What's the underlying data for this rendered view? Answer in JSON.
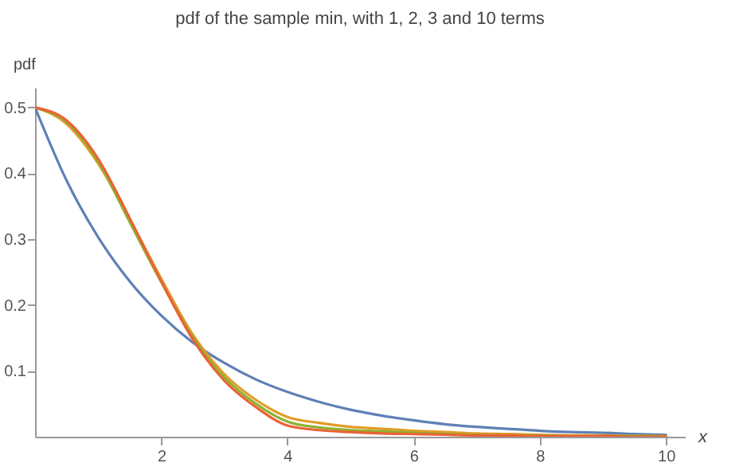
{
  "chart_data": {
    "type": "line",
    "title": "pdf of the sample min, with 1, 2, 3  and 10 terms",
    "xlabel": "x",
    "ylabel": "pdf",
    "x": [
      0,
      0.5,
      1,
      1.5,
      2,
      2.5,
      3,
      3.5,
      4,
      4.5,
      5,
      5.5,
      6,
      6.5,
      7,
      7.5,
      8,
      8.5,
      9,
      9.5,
      10
    ],
    "series": [
      {
        "color": "#5e81b5",
        "values": [
          0.5,
          0.389,
          0.303,
          0.236,
          0.184,
          0.143,
          0.112,
          0.087,
          0.068,
          0.053,
          0.041,
          0.032,
          0.025,
          0.019,
          0.015,
          0.012,
          0.009,
          0.007,
          0.006,
          0.004,
          0.003
        ]
      },
      {
        "color": "#e19c24",
        "values": [
          0.5,
          0.475,
          0.415,
          0.33,
          0.24,
          0.155,
          0.095,
          0.056,
          0.03,
          0.021,
          0.015,
          0.012,
          0.009,
          0.007,
          0.005,
          0.004,
          0.003,
          0.002,
          0.002,
          0.001,
          0.001
        ]
      },
      {
        "color": "#8fb032",
        "values": [
          0.5,
          0.478,
          0.418,
          0.326,
          0.235,
          0.151,
          0.09,
          0.05,
          0.023,
          0.014,
          0.01,
          0.008,
          0.006,
          0.004,
          0.003,
          0.002,
          0.002,
          0.001,
          0.001,
          0.001,
          0
        ]
      },
      {
        "color": "#eb6235",
        "values": [
          0.5,
          0.48,
          0.422,
          0.332,
          0.236,
          0.148,
          0.085,
          0.045,
          0.017,
          0.01,
          0.007,
          0.005,
          0.004,
          0.003,
          0.002,
          0.002,
          0.001,
          0.001,
          0.001,
          0,
          0
        ]
      }
    ],
    "xlim": [
      0,
      10.3
    ],
    "ylim": [
      0,
      0.53
    ],
    "xticks": [
      2,
      4,
      6,
      8,
      10
    ],
    "yticks": [
      0.1,
      0.2,
      0.3,
      0.4,
      0.5
    ],
    "grid": false,
    "legend": false,
    "marker": "none",
    "line_style": "solid"
  }
}
